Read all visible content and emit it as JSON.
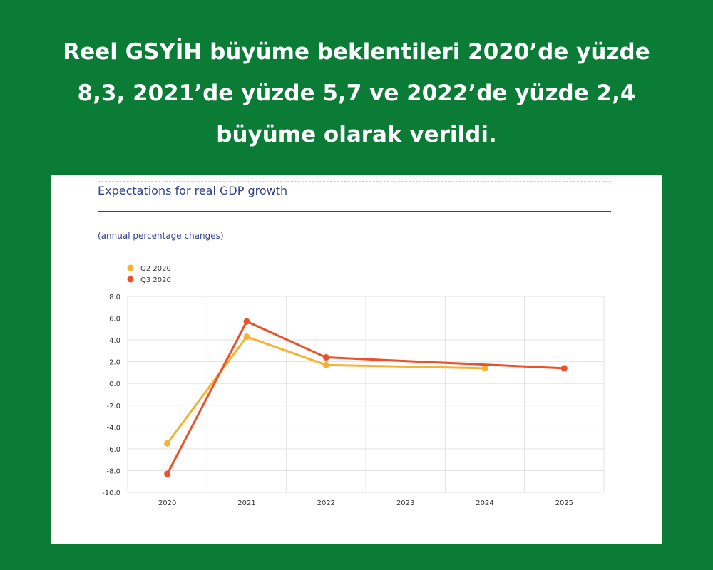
{
  "headline": {
    "lines": [
      "Reel GSYİH büyüme beklentileri 2020’de yüzde",
      "8,3, 2021’de yüzde 5,7 ve 2022’de yüzde 2,4",
      "büyüme olarak verildi."
    ]
  },
  "colors": {
    "background": "#0b7c36",
    "panel": "#ffffff",
    "title": "#33418c",
    "grid": "#e2e2e2",
    "axis_text": "#333333"
  },
  "chart_data": {
    "type": "line",
    "title": "Expectations for real GDP growth",
    "subtitle": "(annual percentage changes)",
    "xlabel": "",
    "ylabel": "",
    "categories": [
      "2020",
      "2021",
      "2022",
      "2023",
      "2024",
      "2025"
    ],
    "yticks": [
      "8.0",
      "6.0",
      "4.0",
      "2.0",
      "0.0",
      "-2.0",
      "-4.0",
      "-6.0",
      "-8.0",
      "-10.0"
    ],
    "ylim": [
      -10,
      8
    ],
    "grid": true,
    "legend_position": "top-left",
    "series": [
      {
        "name": "Q2 2020",
        "color": "#f5b335",
        "x": [
          "2020",
          "2021",
          "2022",
          "2024"
        ],
        "values": [
          -5.5,
          4.3,
          1.7,
          1.4
        ]
      },
      {
        "name": "Q3 2020",
        "color": "#e9512a",
        "x": [
          "2020",
          "2021",
          "2022",
          "2025"
        ],
        "values": [
          -8.3,
          5.7,
          2.4,
          1.4
        ]
      }
    ]
  }
}
